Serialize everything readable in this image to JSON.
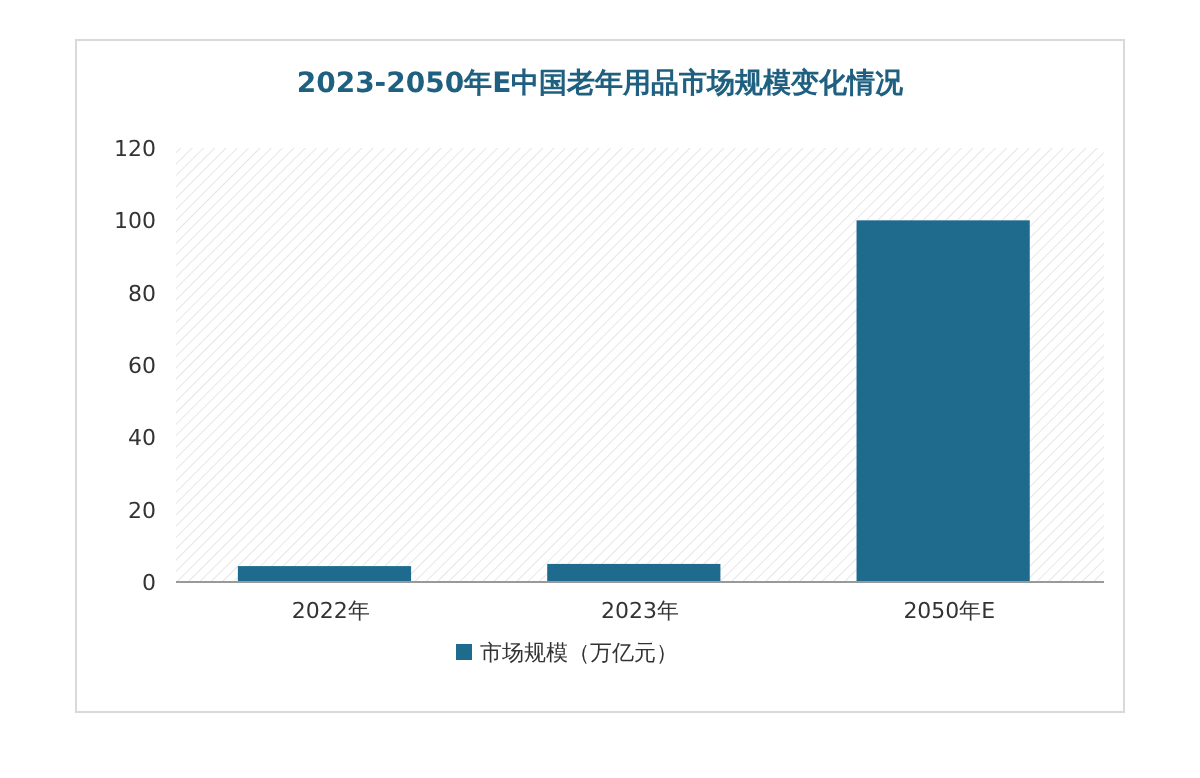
{
  "chart_data": {
    "type": "bar",
    "title": "2023-2050年E中国老年用品市场规模变化情况",
    "categories": [
      "2022年",
      "2023年",
      "2050年E"
    ],
    "series": [
      {
        "name": "市场规模（万亿元）",
        "color": "#1f6b8e",
        "values": [
          4.4,
          5,
          100
        ]
      }
    ],
    "ylim": [
      0,
      120
    ],
    "yticks": [
      0,
      20,
      40,
      60,
      80,
      100,
      120
    ],
    "grid": false,
    "legend": "bottom"
  }
}
